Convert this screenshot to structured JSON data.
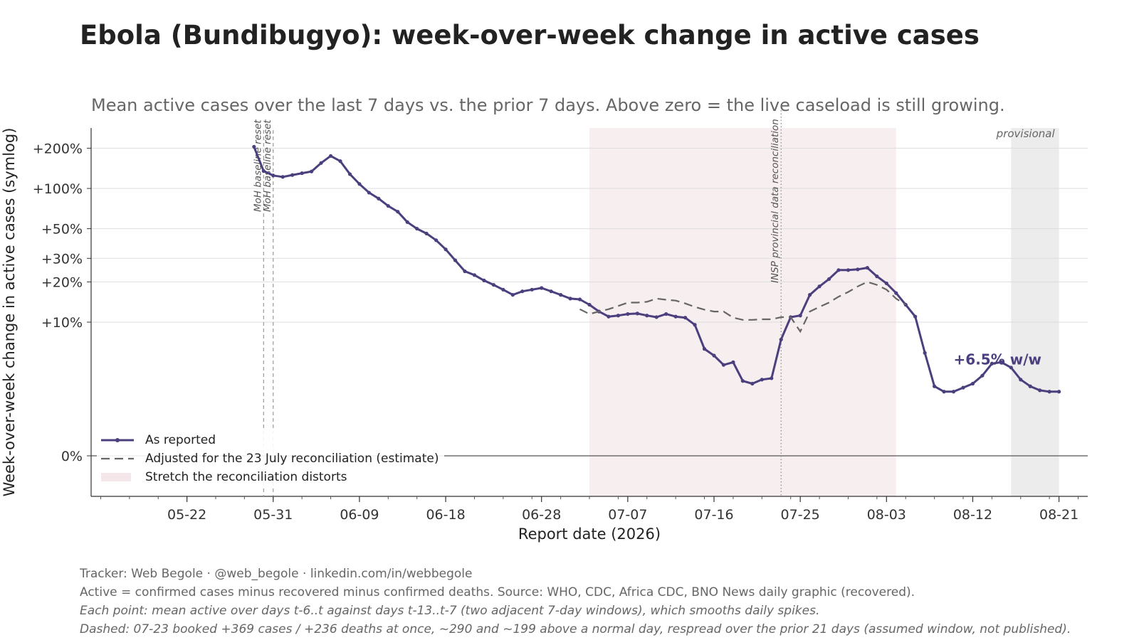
{
  "title": "Ebola (Bundibugyo): week-over-week change in active cases",
  "subtitle": "Mean active cases over the last 7 days vs. the prior 7 days. Above zero = the live caseload is still growing.",
  "colors": {
    "reported": "#4c3f7e",
    "adjusted": "#666666",
    "shade": "#f7eef0",
    "provisional": "#ececec",
    "grid": "#dddddd"
  },
  "chart_data": {
    "type": "line",
    "xlabel": "Report date (2026)",
    "ylabel": "Week-over-week change in active cases (symlog)",
    "y_scale": "symlog",
    "x_range": [
      "2026-05-12",
      "2026-08-24"
    ],
    "x_ticks": [
      "05-22",
      "05-31",
      "06-09",
      "06-18",
      "06-28",
      "07-07",
      "07-16",
      "07-25",
      "08-03",
      "08-12",
      "08-21"
    ],
    "x_tick_dates": [
      "2026-05-22",
      "2026-05-31",
      "2026-06-09",
      "2026-06-18",
      "2026-06-28",
      "2026-07-07",
      "2026-07-16",
      "2026-07-25",
      "2026-08-03",
      "2026-08-12",
      "2026-08-21"
    ],
    "y_ticks": [
      0,
      10,
      20,
      30,
      50,
      100,
      200
    ],
    "y_tick_labels": [
      "0%",
      "+10%",
      "+20%",
      "+30%",
      "+50%",
      "+100%",
      "+200%"
    ],
    "grid": "horizontal",
    "legend_position": "lower-left",
    "series": [
      {
        "name": "As reported",
        "start_date": "2026-05-29",
        "values": [
          205,
          135,
          125,
          122,
          126,
          130,
          134,
          155,
          175,
          160,
          128,
          108,
          93,
          84,
          74,
          67,
          56,
          50,
          46,
          41,
          35,
          29,
          24,
          22.5,
          20.5,
          19,
          17.5,
          16,
          17,
          17.5,
          18,
          17,
          16,
          15,
          14.8,
          13.5,
          12,
          11,
          11.2,
          11.5,
          11.6,
          11.2,
          10.9,
          11.5,
          11,
          10.8,
          9.8,
          8,
          7.5,
          6.8,
          7,
          5.6,
          5.4,
          5.7,
          5.8,
          8.7,
          10.9,
          11.2,
          16,
          18.5,
          21,
          24.5,
          24.5,
          24.8,
          25.5,
          22,
          19.5,
          16.5,
          13.5,
          11,
          7.7,
          5.2,
          4.8,
          4.8,
          5.1,
          5.4,
          6,
          6.9,
          7,
          6.6,
          5.7,
          5.2,
          4.9,
          4.8,
          4.8
        ]
      },
      {
        "name": "Adjusted for the 23 July reconciliation (estimate)",
        "start_date": "2026-07-02",
        "values": [
          12.5,
          11.5,
          12,
          12.5,
          13.2,
          14,
          14,
          14.2,
          15,
          14.7,
          14.5,
          13.8,
          13,
          12.4,
          12,
          12,
          10.8,
          10.4,
          10.4,
          10.5,
          10.5,
          10.9,
          10.9,
          9.3,
          12,
          13,
          14,
          15.5,
          16.8,
          18.5,
          20,
          19,
          17.5,
          15,
          13.5
        ]
      }
    ],
    "shaded_region": {
      "label": "Stretch the reconciliation distorts",
      "from": "2026-07-03",
      "to": "2026-08-04"
    },
    "provisional_region": {
      "label": "provisional",
      "from": "2026-08-16",
      "to": "2026-08-21"
    },
    "vlines": [
      {
        "date": "2026-05-30",
        "label": "MoH baseline reset",
        "style": "dashed"
      },
      {
        "date": "2026-05-31",
        "label": "MoH baseline reset",
        "style": "dashed"
      },
      {
        "date": "2026-07-23",
        "label": "INSP provincial data reconciliation",
        "style": "dotted"
      }
    ],
    "annotation": "+6.5% w/w"
  },
  "footer": {
    "line1": "Tracker: Web Begole · @web_begole · linkedin.com/in/webbegole",
    "line2": "Active = confirmed cases minus recovered minus confirmed deaths. Source: WHO, CDC, Africa CDC, BNO News daily graphic (recovered).",
    "line3": "Each point: mean active over days t-6..t against days t-13..t-7 (two adjacent 7-day windows), which smooths daily spikes.",
    "line4": "Dashed: 07-23 booked +369 cases / +236 deaths at once, ~290 and ~199 above a normal day, respread over the prior 21 days (assumed window, not published)."
  }
}
